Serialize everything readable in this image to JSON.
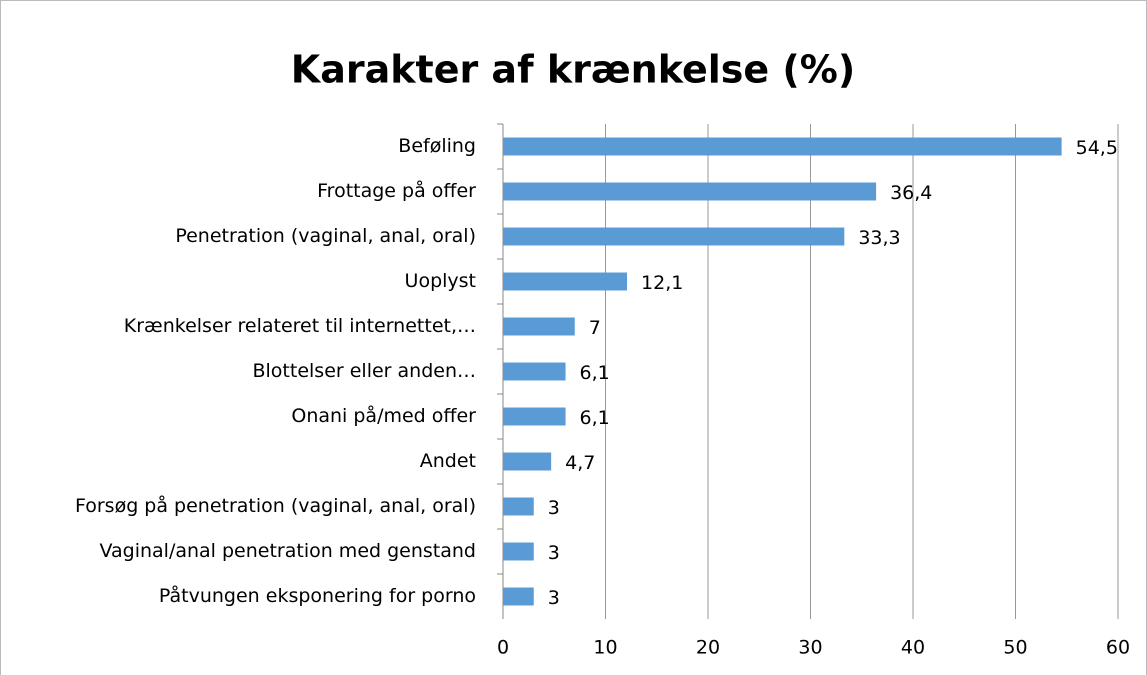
{
  "chart_data": {
    "type": "bar",
    "orientation": "horizontal",
    "title": "Karakter af krænkelse (%)",
    "categories": [
      "Beføling",
      "Frottage på offer",
      "Penetration (vaginal, anal, oral)",
      "Uoplyst",
      "Krænkelser relateret til internettet,…",
      "Blottelser eller anden…",
      "Onani på/med offer",
      "Andet",
      "Forsøg på penetration (vaginal, anal, oral)",
      "Vaginal/anal penetration med genstand",
      "Påtvungen eksponering for porno"
    ],
    "values": [
      54.5,
      36.4,
      33.3,
      12.1,
      7,
      6.1,
      6.1,
      4.7,
      3,
      3,
      3
    ],
    "value_labels": [
      "54,5",
      "36,4",
      "33,3",
      "12,1",
      "7",
      "6,1",
      "6,1",
      "4,7",
      "3",
      "3",
      "3"
    ],
    "color": "#5b9bd5",
    "xlim": [
      0,
      60
    ],
    "xticks": [
      0,
      10,
      20,
      30,
      40,
      50,
      60
    ],
    "grid": true
  }
}
